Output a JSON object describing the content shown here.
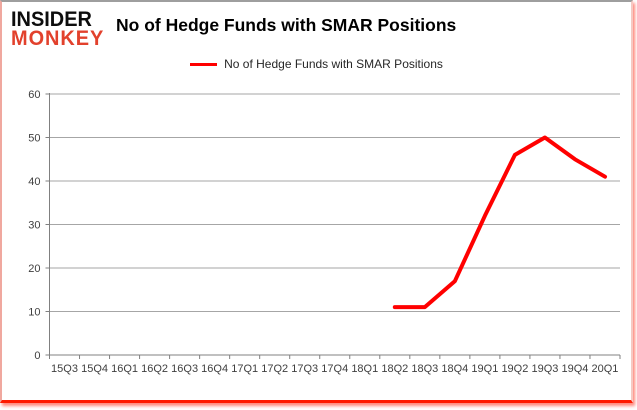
{
  "header": {
    "logo": {
      "line1": "INSIDER",
      "line2": "MONKEY"
    },
    "title": "No of Hedge Funds with SMAR Positions"
  },
  "legend": {
    "label": "No of Hedge Funds with SMAR Positions"
  },
  "colors": {
    "line": "#ff0000",
    "grid": "#a6a6a6",
    "axis": "#808080",
    "tick_label": "#3f3f3f",
    "logo_accent": "#e2412c",
    "border_red": "#fe1a00"
  },
  "chart_data": {
    "type": "line",
    "title": "No of Hedge Funds with SMAR Positions",
    "categories": [
      "15Q3",
      "15Q4",
      "16Q1",
      "16Q2",
      "16Q3",
      "16Q4",
      "17Q1",
      "17Q2",
      "17Q3",
      "17Q4",
      "18Q1",
      "18Q2",
      "18Q3",
      "18Q4",
      "19Q1",
      "19Q2",
      "19Q3",
      "19Q4",
      "20Q1"
    ],
    "series": [
      {
        "name": "No of Hedge Funds with SMAR Positions",
        "color": "#ff0000",
        "values": [
          null,
          null,
          null,
          null,
          null,
          null,
          null,
          null,
          null,
          null,
          null,
          11,
          11,
          17,
          32,
          46,
          50,
          45,
          41
        ]
      }
    ],
    "xlabel": "",
    "ylabel": "",
    "ylim": [
      0,
      60
    ],
    "yticks": [
      0,
      10,
      20,
      30,
      40,
      50,
      60
    ],
    "grid": true,
    "legend_position": "top-center"
  }
}
